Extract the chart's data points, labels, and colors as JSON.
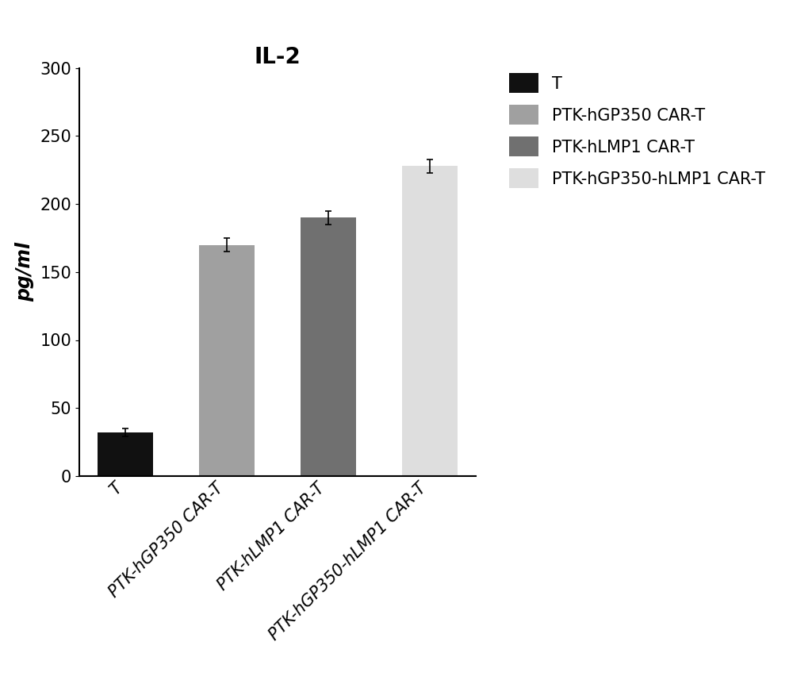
{
  "title": "IL-2",
  "ylabel": "pg/ml",
  "categories": [
    "T",
    "PTK-hGP350 CAR-T",
    "PTK-hLMP1 CAR-T",
    "PTK-hGP350-hLMP1 CAR-T"
  ],
  "values": [
    32,
    170,
    190,
    228
  ],
  "errors": [
    3,
    5,
    5,
    5
  ],
  "bar_colors": [
    "#111111",
    "#a0a0a0",
    "#707070",
    "#dedede"
  ],
  "legend_labels": [
    "T",
    "PTK-hGP350 CAR-T",
    "PTK-hLMP1 CAR-T",
    "PTK-hGP350-hLMP1 CAR-T"
  ],
  "legend_colors": [
    "#111111",
    "#a0a0a0",
    "#707070",
    "#dedede"
  ],
  "ylim": [
    0,
    300
  ],
  "yticks": [
    0,
    50,
    100,
    150,
    200,
    250,
    300
  ],
  "title_fontsize": 20,
  "axis_fontsize": 17,
  "tick_fontsize": 15,
  "legend_fontsize": 15,
  "bar_width": 0.55,
  "background_color": "#ffffff"
}
